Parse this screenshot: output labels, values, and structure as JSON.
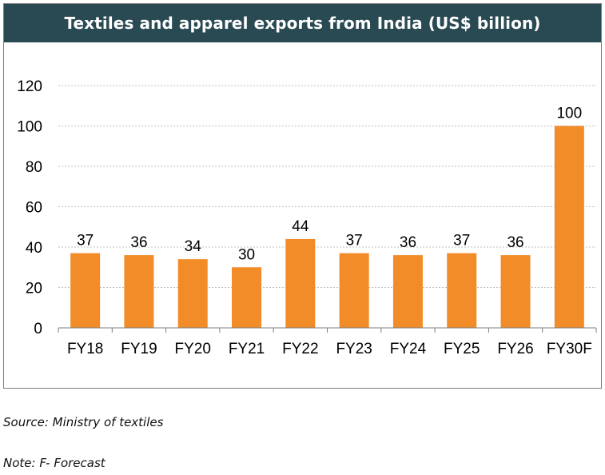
{
  "chart_data": {
    "type": "bar",
    "title": "Textiles and apparel exports from India (US$ billion)",
    "categories": [
      "FY18",
      "FY19",
      "FY20",
      "FY21",
      "FY22",
      "FY23",
      "FY24",
      "FY25",
      "FY26",
      "FY30F"
    ],
    "values": [
      37,
      36,
      34,
      30,
      44,
      37,
      36,
      37,
      36,
      100
    ],
    "data_labels": [
      "37",
      "36",
      "34",
      "30",
      "44",
      "37",
      "36",
      "37",
      "36",
      "100"
    ],
    "ylim": [
      0,
      120
    ],
    "yticks": [
      0,
      20,
      40,
      60,
      80,
      100,
      120
    ],
    "grid": true,
    "bar_color": "#f28c28",
    "grid_color": "#bfbfbf"
  },
  "notes": {
    "source": "Source: Ministry of textiles",
    "forecast": "Note: F- Forecast"
  }
}
